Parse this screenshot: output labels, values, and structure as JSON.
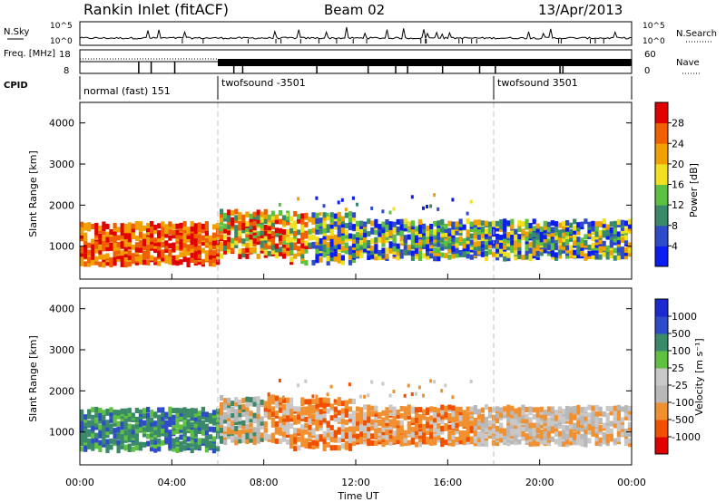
{
  "header": {
    "station": "Rankin Inlet (fitACF)",
    "beam": "Beam 02",
    "date": "13/Apr/2013"
  },
  "colors": {
    "power_scale": [
      "#0a1cf0",
      "#2f4cc8",
      "#3a8a6a",
      "#5cc040",
      "#f0e020",
      "#f0a000",
      "#f06000",
      "#e00000"
    ],
    "velocity_scale": [
      "#e00000",
      "#f05000",
      "#f09030",
      "#b8b8b8",
      "#c8c8c8",
      "#60c040",
      "#3a8a6a",
      "#2f4cc8",
      "#1c28d0"
    ],
    "marker": "#000000",
    "transition_line": "#c0c0c0"
  },
  "chart_data": [
    {
      "type": "line",
      "panel": "top",
      "series": [
        {
          "name": "N.Sky",
          "axis_label": "N.Sky",
          "y_scale": "log",
          "y_tick_labels": [
            "10^0",
            "10^5"
          ]
        },
        {
          "name": "N.Search",
          "axis_label": "N.Search",
          "y_scale": "log",
          "y_tick_labels": [
            "10^0",
            "10^5"
          ]
        }
      ]
    },
    {
      "type": "line",
      "panel": "frequency",
      "series": [
        {
          "name": "Freq. [MHz]",
          "axis_label": "Freq. [MHz]",
          "ylim": [
            8,
            18
          ],
          "y_ticks": [
            8,
            18
          ]
        },
        {
          "name": "Nave",
          "axis_label": "Nave",
          "ylim": [
            0,
            60
          ],
          "y_ticks": [
            0,
            60
          ]
        }
      ]
    },
    {
      "type": "table",
      "panel": "cpid",
      "label": "CPID",
      "segments": [
        {
          "name": "normal (fast) 151",
          "start_hour": 0,
          "end_hour": 6
        },
        {
          "name": "twofsound -3501",
          "start_hour": 6,
          "end_hour": 18
        },
        {
          "name": "twofsound 3501",
          "start_hour": 18,
          "end_hour": 24
        }
      ]
    },
    {
      "type": "heatmap",
      "quantity": "power",
      "ylabel": "Slant Range [km]",
      "ylim": [
        200,
        4500
      ],
      "y_ticks": [
        1000,
        2000,
        3000,
        4000
      ],
      "colorbar_label": "Power [dB]",
      "colorbar_ticks": [
        4,
        8,
        12,
        16,
        20,
        24,
        28
      ]
    },
    {
      "type": "heatmap",
      "quantity": "velocity",
      "ylabel": "Slant Range [km]",
      "ylim": [
        200,
        4500
      ],
      "y_ticks": [
        1000,
        2000,
        3000,
        4000
      ],
      "colorbar_label": "Velocity [m s⁻¹]",
      "colorbar_ticks": [
        "-1000",
        "-500",
        "-100",
        "-25",
        "25",
        "100",
        "500",
        "1000"
      ]
    }
  ],
  "x_axis": {
    "xlabel": "Time UT",
    "ticks": [
      "00:00",
      "04:00",
      "08:00",
      "12:00",
      "16:00",
      "20:00",
      "00:00"
    ]
  }
}
